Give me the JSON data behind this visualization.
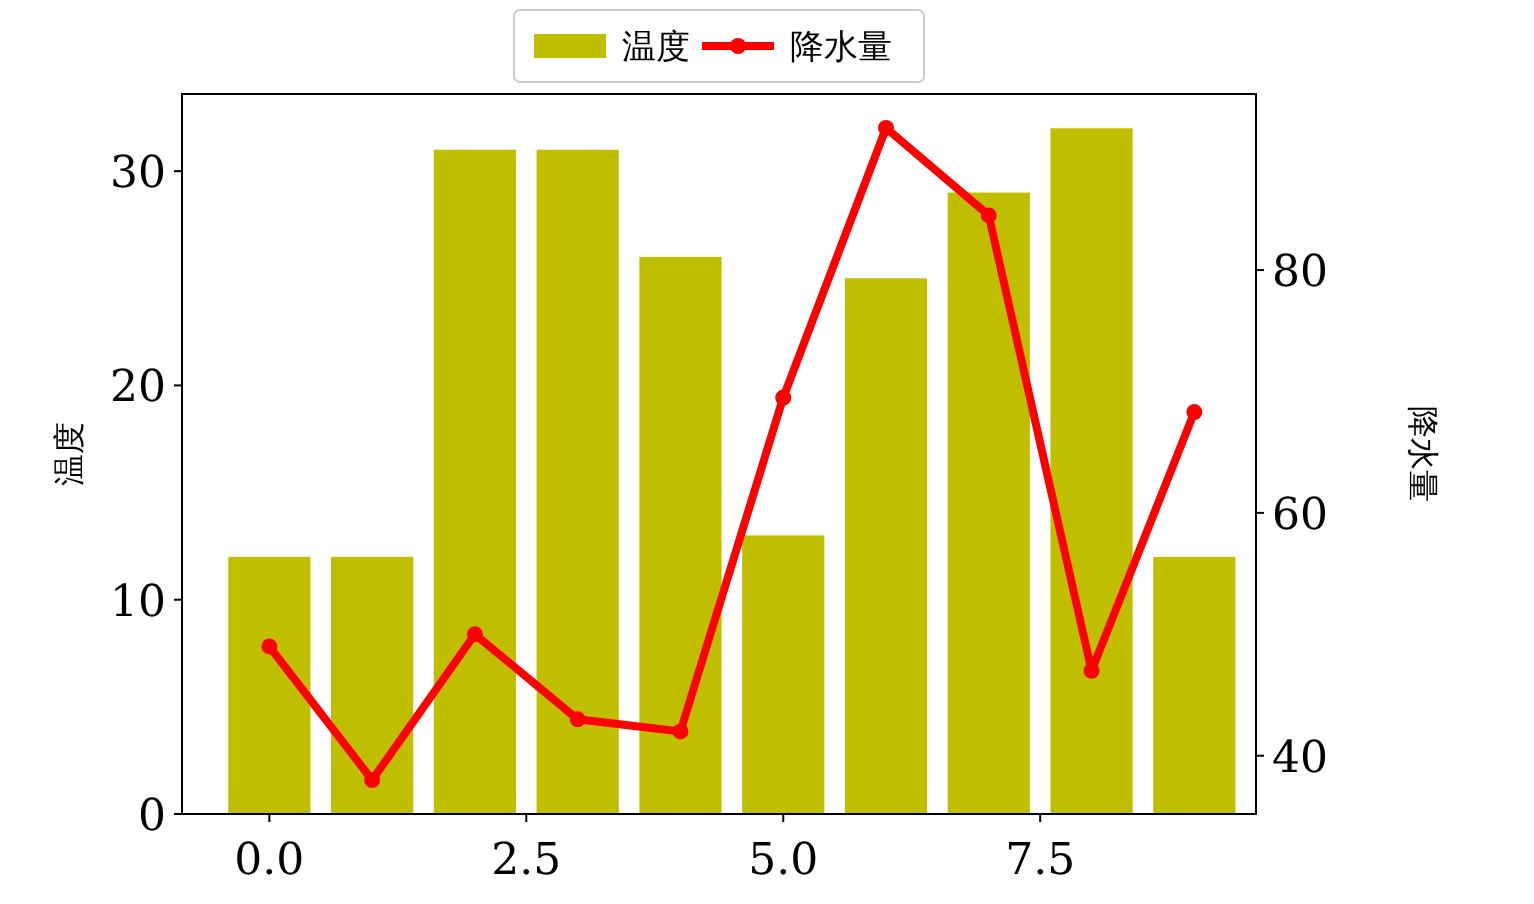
{
  "chart_data": {
    "type": "bar",
    "x": [
      0,
      1,
      2,
      3,
      4,
      5,
      6,
      7,
      8,
      9
    ],
    "series": [
      {
        "name": "温度",
        "color": "#bfbf00",
        "values": [
          12,
          12,
          31,
          31,
          26,
          13,
          25,
          29,
          32,
          12
        ]
      },
      {
        "name": "降水量",
        "type": "line",
        "axis": "y2",
        "color": "#ff0000",
        "values": [
          49,
          38,
          50,
          43,
          42,
          69.5,
          91.7,
          84.5,
          47,
          68.3
        ]
      }
    ],
    "ylabel": "温度",
    "y2label": "降水量",
    "xlim": [
      -0.85,
      9.6
    ],
    "xticks": [
      {
        "value": 0,
        "label": "0.0"
      },
      {
        "value": 2.5,
        "label": "2.5"
      },
      {
        "value": 5,
        "label": "5.0"
      },
      {
        "value": 7.5,
        "label": "7.5"
      }
    ],
    "ylim": [
      0,
      33.6
    ],
    "yticks": [
      0,
      10,
      20,
      30
    ],
    "y2lim": [
      35.2,
      94.5
    ],
    "y2ticks": [
      40,
      60,
      80
    ],
    "legend": "top",
    "marker": "circle",
    "grid": false
  }
}
